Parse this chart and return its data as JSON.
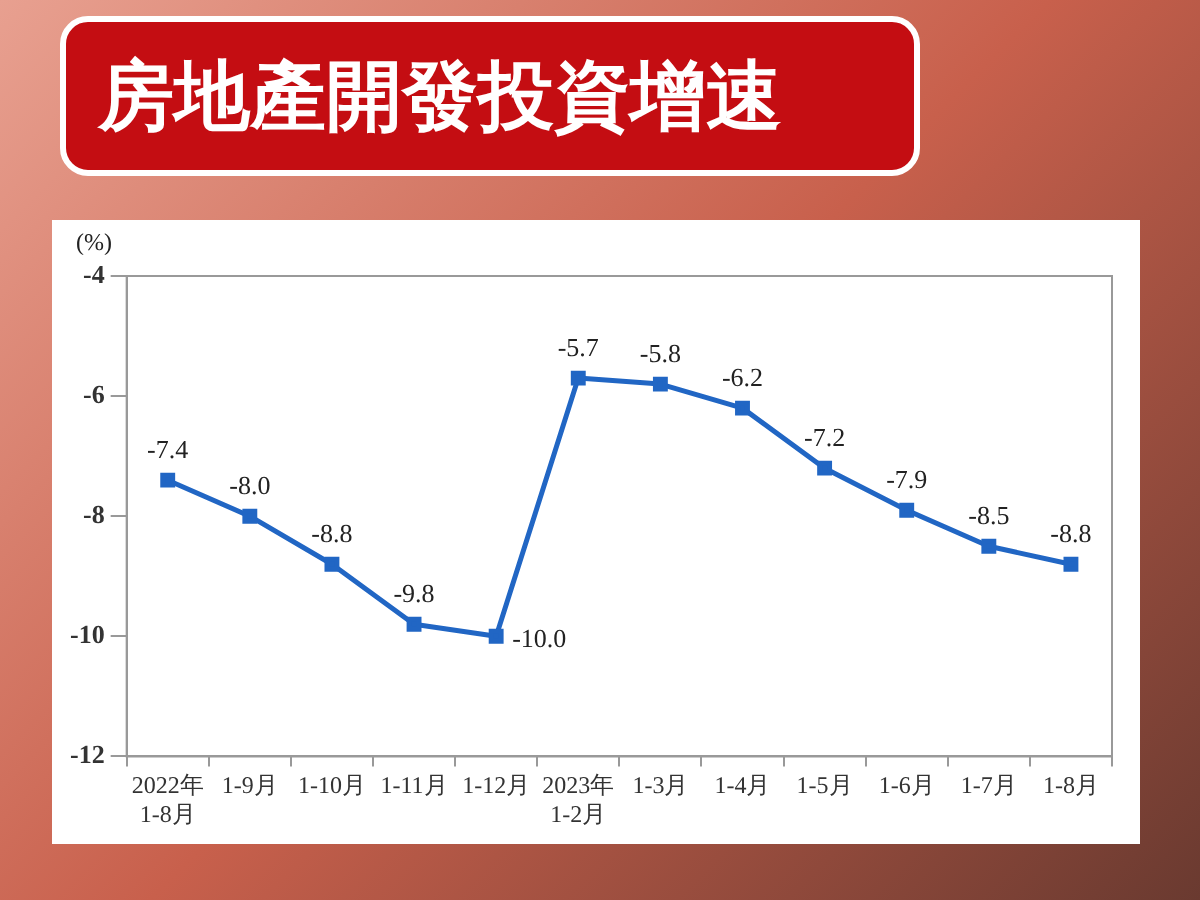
{
  "chart_data": {
    "type": "line",
    "title": "房地產開發投資增速",
    "ylabel": "(%)",
    "categories": [
      "2022年\n1-8月",
      "1-9月",
      "1-10月",
      "1-11月",
      "1-12月",
      "2023年\n1-2月",
      "1-3月",
      "1-4月",
      "1-5月",
      "1-6月",
      "1-7月",
      "1-8月"
    ],
    "series": [
      {
        "color": "#2166c4",
        "values": [
          -7.4,
          -8.0,
          -8.8,
          -9.8,
          -10.0,
          -5.7,
          -5.8,
          -6.2,
          -7.2,
          -7.9,
          -8.5,
          -8.8
        ],
        "value_labels": [
          "-7.4",
          "-8.0",
          "-8.8",
          "-9.8",
          "-10.0",
          "-5.7",
          "-5.8",
          "-6.2",
          "-7.2",
          "-7.9",
          "-8.5",
          "-8.8"
        ]
      }
    ],
    "ylim": [
      -12,
      -4
    ],
    "yticks": [
      -12,
      -10,
      -8,
      -6,
      -4
    ],
    "grid": false,
    "legend": false,
    "marker": "square",
    "line_style": "solid"
  }
}
